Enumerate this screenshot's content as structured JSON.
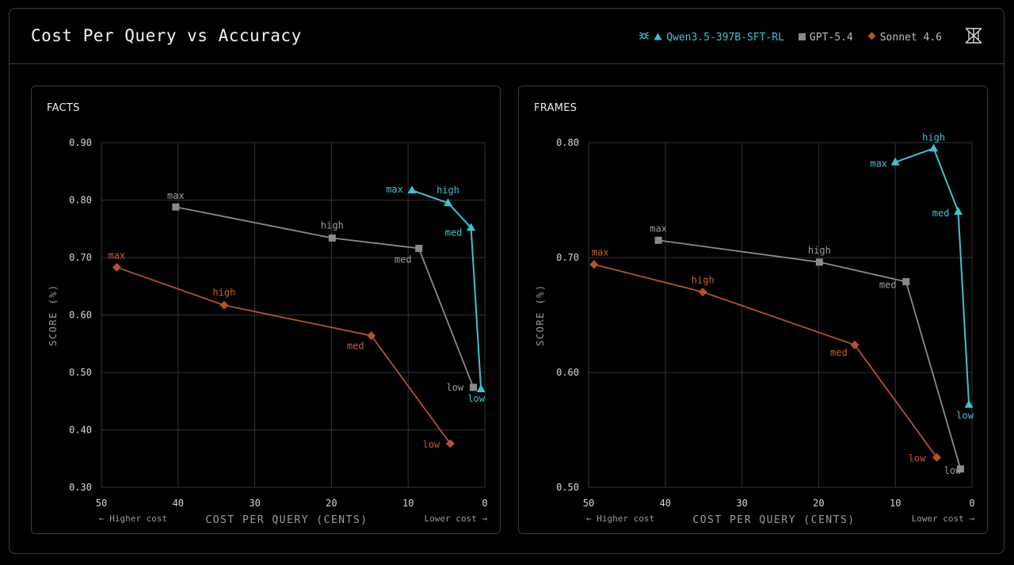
{
  "title": "Cost Per Query vs Accuracy",
  "legend": [
    {
      "name": "Qwen3.5-397B-SFT-RL",
      "color": "#3fc1cf",
      "marker": "triangle"
    },
    {
      "name": "GPT-5.4",
      "color": "#8a8a8a",
      "marker": "square"
    },
    {
      "name": "Sonnet 4.6",
      "color": "#b4532a",
      "marker": "diamond"
    }
  ],
  "icons": {
    "legend_brand": "spider-logo-icon",
    "logo": "crossed-triangles-logo-icon"
  },
  "chart_data": [
    {
      "type": "line",
      "title": "FACTS",
      "xlabel": "COST PER QUERY (CENTS)",
      "ylabel": "SCORE (%)",
      "x_left_note": "← Higher cost",
      "x_right_note": "Lower cost →",
      "xlim": [
        50,
        0
      ],
      "ylim": [
        0.3,
        0.9
      ],
      "xticks": [
        50,
        40,
        30,
        20,
        10,
        0
      ],
      "yticks": [
        "0.30",
        "0.40",
        "0.50",
        "0.60",
        "0.70",
        "0.80",
        "0.90"
      ],
      "grid": true,
      "series": [
        {
          "name": "Qwen3.5-397B-SFT-RL",
          "color": "#3fc1cf",
          "marker": "triangle",
          "points": [
            {
              "x": 9.5,
              "y": 0.817,
              "label": "max"
            },
            {
              "x": 4.8,
              "y": 0.795,
              "label": "high"
            },
            {
              "x": 1.8,
              "y": 0.752,
              "label": "med"
            },
            {
              "x": 0.5,
              "y": 0.471,
              "label": "low"
            }
          ]
        },
        {
          "name": "GPT-5.4",
          "color": "#8a8a8a",
          "marker": "square",
          "points": [
            {
              "x": 40.3,
              "y": 0.788,
              "label": "max"
            },
            {
              "x": 19.9,
              "y": 0.734,
              "label": "high"
            },
            {
              "x": 8.6,
              "y": 0.716,
              "label": "med"
            },
            {
              "x": 1.5,
              "y": 0.474,
              "label": "low"
            }
          ]
        },
        {
          "name": "Sonnet 4.6",
          "color": "#b4532a",
          "marker": "diamond",
          "points": [
            {
              "x": 48.0,
              "y": 0.683,
              "label": "max"
            },
            {
              "x": 34.0,
              "y": 0.617,
              "label": "high"
            },
            {
              "x": 14.8,
              "y": 0.564,
              "label": "med"
            },
            {
              "x": 4.5,
              "y": 0.376,
              "label": "low"
            }
          ]
        }
      ]
    },
    {
      "type": "line",
      "title": "FRAMES",
      "xlabel": "COST PER QUERY (CENTS)",
      "ylabel": "SCORE (%)",
      "x_left_note": "← Higher cost",
      "x_right_note": "Lower cost →",
      "xlim": [
        50,
        0
      ],
      "ylim": [
        0.5,
        0.8
      ],
      "xticks": [
        50,
        40,
        30,
        20,
        10,
        0
      ],
      "yticks": [
        "0.50",
        "0.60",
        "0.70",
        "0.80"
      ],
      "grid": true,
      "series": [
        {
          "name": "Qwen3.5-397B-SFT-RL",
          "color": "#3fc1cf",
          "marker": "triangle",
          "points": [
            {
              "x": 10.0,
              "y": 0.783,
              "label": "max"
            },
            {
              "x": 5.0,
              "y": 0.795,
              "label": "high"
            },
            {
              "x": 1.8,
              "y": 0.74,
              "label": "med"
            },
            {
              "x": 0.4,
              "y": 0.572,
              "label": "low"
            }
          ]
        },
        {
          "name": "GPT-5.4",
          "color": "#8a8a8a",
          "marker": "square",
          "points": [
            {
              "x": 40.9,
              "y": 0.715,
              "label": "max"
            },
            {
              "x": 19.9,
              "y": 0.696,
              "label": "high"
            },
            {
              "x": 8.6,
              "y": 0.679,
              "label": "med"
            },
            {
              "x": 1.5,
              "y": 0.516,
              "label": "low"
            }
          ]
        },
        {
          "name": "Sonnet 4.6",
          "color": "#b4532a",
          "marker": "diamond",
          "points": [
            {
              "x": 49.3,
              "y": 0.694,
              "label": "max"
            },
            {
              "x": 35.1,
              "y": 0.67,
              "label": "high"
            },
            {
              "x": 15.3,
              "y": 0.624,
              "label": "med"
            },
            {
              "x": 4.6,
              "y": 0.526,
              "label": "low"
            }
          ]
        }
      ]
    }
  ]
}
